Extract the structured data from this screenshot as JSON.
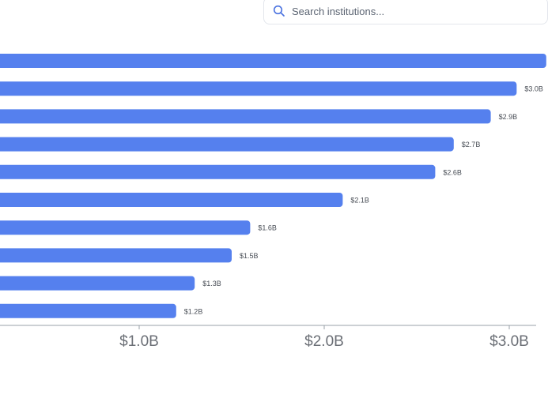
{
  "search": {
    "placeholder": "Search institutions..."
  },
  "colors": {
    "bar": "#5580EE",
    "axis": "#9aa0a8",
    "tick_text": "#6b6f76",
    "label_text": "#4a4f57"
  },
  "chart_data": {
    "type": "bar",
    "orientation": "horizontal",
    "values": [
      3.2,
      3.04,
      2.9,
      2.7,
      2.6,
      2.1,
      1.6,
      1.5,
      1.3,
      1.2
    ],
    "value_labels": [
      "",
      "$3.0B",
      "$2.9B",
      "$2.7B",
      "$2.6B",
      "$2.1B",
      "$1.6B",
      "$1.5B",
      "$1.3B",
      "$1.2B"
    ],
    "xticks": [
      1.0,
      2.0,
      3.0
    ],
    "xtick_labels": [
      "$1.0B",
      "$2.0B",
      "$3.0B"
    ],
    "unit": "billions USD",
    "grid": false
  }
}
